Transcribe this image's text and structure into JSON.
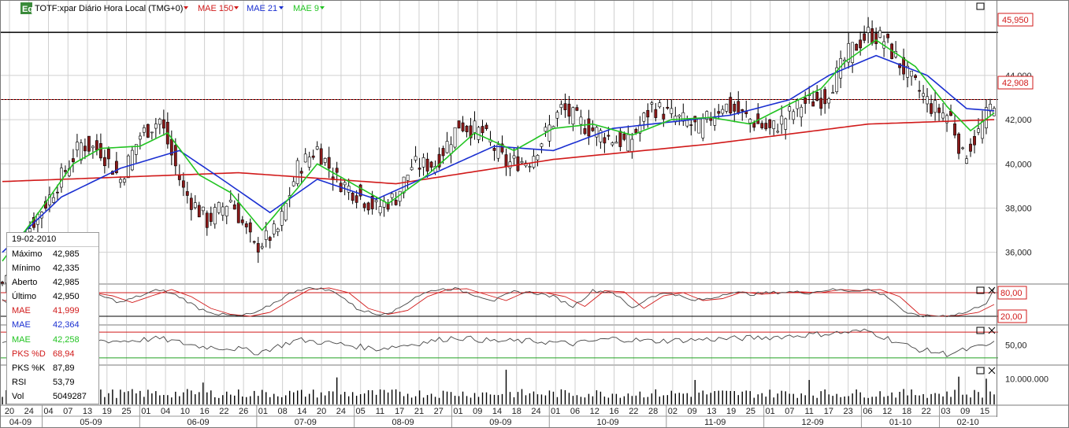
{
  "header": {
    "logo_text": "Eq",
    "symbol_label": "TOTF:xpar Diário Hora Local (TMG+0)",
    "indicators": [
      {
        "label": "MAE 150",
        "color": "#d11a1a"
      },
      {
        "label": "MAE 21",
        "color": "#1a2fd1"
      },
      {
        "label": "MAE 9",
        "color": "#22c422"
      }
    ]
  },
  "price_markers": {
    "resistance": "45,950",
    "last": "42,908"
  },
  "info_box": {
    "date": "19-02-2010",
    "rows": [
      {
        "label": "Máximo",
        "value": "42,985",
        "color": "#000000"
      },
      {
        "label": "Mínimo",
        "value": "42,335",
        "color": "#000000"
      },
      {
        "label": "Aberto",
        "value": "42,985",
        "color": "#000000"
      },
      {
        "label": "Último",
        "value": "42,950",
        "color": "#000000"
      },
      {
        "label": "MAE",
        "value": "41,999",
        "color": "#d11a1a"
      },
      {
        "label": "MAE",
        "value": "42,364",
        "color": "#1a2fd1"
      },
      {
        "label": "MAE",
        "value": "42,258",
        "color": "#22c422"
      },
      {
        "label": "PKS %D",
        "value": "68,94",
        "color": "#d11a1a"
      },
      {
        "label": "PKS %K",
        "value": "87,89",
        "color": "#000000"
      },
      {
        "label": "RSI",
        "value": "53,79",
        "color": "#000000"
      },
      {
        "label": "Vol",
        "value": "5049287",
        "color": "#000000"
      }
    ]
  },
  "colors": {
    "up_candle": "#ffffff",
    "down_candle": "#8b1a1a",
    "grid": "#d0d0d0",
    "mae150": "#d11a1a",
    "mae21": "#1a2fd1",
    "mae9": "#22c422"
  },
  "chart_data": {
    "type": "line",
    "panels": [
      {
        "name": "price",
        "kind": "candlestick",
        "y_ticks": [
          "36,000",
          "38,000",
          "40,000",
          "42,000",
          "44,000"
        ],
        "y_tick_values": [
          36,
          38,
          40,
          42,
          44
        ],
        "ylim": [
          34.6,
          46.7
        ],
        "horizontal_lines": [
          45.95,
          42.908
        ],
        "grid": true
      },
      {
        "name": "stochastic",
        "series_names": [
          "PKS %K",
          "PKS %D"
        ],
        "y_ticks": [
          "80,00",
          "20,00"
        ],
        "y_tick_values": [
          80,
          20
        ],
        "ylim": [
          0,
          100
        ]
      },
      {
        "name": "rsi",
        "y_ticks": [
          "50,00"
        ],
        "y_tick_values": [
          50
        ],
        "ylim": [
          20,
          80
        ],
        "reference_lines": [
          70,
          30
        ]
      },
      {
        "name": "volume",
        "kind": "bar",
        "y_ticks": [
          "10.000.000"
        ],
        "y_tick_values": [
          10000000
        ],
        "ylim": [
          0,
          15000000
        ]
      }
    ],
    "x_day_ticks": [
      "20",
      "24",
      "04",
      "07",
      "13",
      "19",
      "25",
      "01",
      "04",
      "10",
      "16",
      "22",
      "26",
      "01",
      "08",
      "14",
      "20",
      "24",
      "05",
      "11",
      "17",
      "21",
      "27",
      "01",
      "09",
      "14",
      "18",
      "24",
      "01",
      "06",
      "12",
      "16",
      "22",
      "28",
      "02",
      "09",
      "13",
      "19",
      "25",
      "01",
      "07",
      "11",
      "17",
      "23",
      "06",
      "12",
      "18",
      "22",
      "03",
      "09",
      "15"
    ],
    "x_month_ticks": [
      "04-09",
      "05-09",
      "06-09",
      "07-09",
      "08-09",
      "09-09",
      "10-09",
      "11-09",
      "12-09",
      "01-10",
      "02-10"
    ],
    "close_path": [
      [
        0,
        34.6
      ],
      [
        5,
        36.6
      ],
      [
        12,
        38.5
      ],
      [
        20,
        40.9
      ],
      [
        25,
        40.6
      ],
      [
        30,
        39.3
      ],
      [
        35,
        41.3
      ],
      [
        40,
        42.0
      ],
      [
        46,
        38.8
      ],
      [
        52,
        37.4
      ],
      [
        58,
        38.4
      ],
      [
        64,
        36.2
      ],
      [
        70,
        37.0
      ],
      [
        75,
        39.8
      ],
      [
        80,
        40.7
      ],
      [
        85,
        39.3
      ],
      [
        95,
        38.0
      ],
      [
        100,
        38.5
      ],
      [
        104,
        39.9
      ],
      [
        110,
        40.0
      ],
      [
        116,
        41.8
      ],
      [
        122,
        41.4
      ],
      [
        128,
        40.0
      ],
      [
        134,
        40.2
      ],
      [
        142,
        42.5
      ],
      [
        149,
        41.6
      ],
      [
        154,
        41.2
      ],
      [
        159,
        40.9
      ],
      [
        165,
        42.6
      ],
      [
        171,
        42.1
      ],
      [
        177,
        41.6
      ],
      [
        183,
        42.7
      ],
      [
        189,
        42.1
      ],
      [
        195,
        41.5
      ],
      [
        203,
        42.7
      ],
      [
        209,
        43.0
      ],
      [
        215,
        45.0
      ],
      [
        220,
        45.9
      ],
      [
        224,
        45.6
      ],
      [
        230,
        44.0
      ],
      [
        236,
        42.6
      ],
      [
        241,
        42.1
      ],
      [
        244,
        40.3
      ],
      [
        248,
        41.4
      ],
      [
        252,
        42.9
      ]
    ],
    "mae150_path": [
      [
        0,
        39.2
      ],
      [
        60,
        39.6
      ],
      [
        100,
        39.1
      ],
      [
        140,
        40.2
      ],
      [
        180,
        40.9
      ],
      [
        220,
        41.8
      ],
      [
        252,
        42.0
      ]
    ],
    "mae21_path": [
      [
        0,
        36.0
      ],
      [
        15,
        38.5
      ],
      [
        30,
        39.8
      ],
      [
        45,
        40.6
      ],
      [
        55,
        39.4
      ],
      [
        68,
        37.8
      ],
      [
        80,
        39.3
      ],
      [
        95,
        38.4
      ],
      [
        110,
        39.6
      ],
      [
        125,
        40.8
      ],
      [
        140,
        40.6
      ],
      [
        155,
        41.6
      ],
      [
        170,
        41.9
      ],
      [
        185,
        42.2
      ],
      [
        200,
        42.9
      ],
      [
        210,
        44.0
      ],
      [
        222,
        44.9
      ],
      [
        235,
        44.0
      ],
      [
        245,
        42.5
      ],
      [
        252,
        42.4
      ]
    ],
    "mae9_path": [
      [
        0,
        35.6
      ],
      [
        8,
        37.5
      ],
      [
        18,
        40.0
      ],
      [
        25,
        40.7
      ],
      [
        35,
        40.8
      ],
      [
        42,
        41.4
      ],
      [
        50,
        39.5
      ],
      [
        58,
        38.7
      ],
      [
        66,
        37.0
      ],
      [
        75,
        38.9
      ],
      [
        80,
        40.0
      ],
      [
        90,
        39.0
      ],
      [
        98,
        38.2
      ],
      [
        108,
        39.5
      ],
      [
        120,
        41.4
      ],
      [
        130,
        40.6
      ],
      [
        140,
        41.6
      ],
      [
        150,
        41.8
      ],
      [
        160,
        41.3
      ],
      [
        170,
        42.0
      ],
      [
        180,
        42.1
      ],
      [
        190,
        41.8
      ],
      [
        200,
        42.7
      ],
      [
        208,
        43.4
      ],
      [
        214,
        44.6
      ],
      [
        222,
        45.6
      ],
      [
        232,
        44.4
      ],
      [
        240,
        42.6
      ],
      [
        246,
        41.5
      ],
      [
        252,
        42.3
      ]
    ],
    "stoch_path": [
      [
        0,
        60
      ],
      [
        5,
        50
      ],
      [
        10,
        75
      ],
      [
        15,
        85
      ],
      [
        20,
        80
      ],
      [
        25,
        72
      ],
      [
        30,
        55
      ],
      [
        35,
        72
      ],
      [
        40,
        88
      ],
      [
        45,
        70
      ],
      [
        50,
        40
      ],
      [
        55,
        25
      ],
      [
        60,
        20
      ],
      [
        65,
        30
      ],
      [
        70,
        60
      ],
      [
        75,
        88
      ],
      [
        80,
        92
      ],
      [
        85,
        80
      ],
      [
        90,
        40
      ],
      [
        95,
        25
      ],
      [
        100,
        35
      ],
      [
        105,
        70
      ],
      [
        110,
        88
      ],
      [
        115,
        90
      ],
      [
        120,
        75
      ],
      [
        125,
        60
      ],
      [
        130,
        82
      ],
      [
        135,
        80
      ],
      [
        140,
        70
      ],
      [
        145,
        45
      ],
      [
        150,
        85
      ],
      [
        155,
        82
      ],
      [
        160,
        40
      ],
      [
        165,
        72
      ],
      [
        170,
        80
      ],
      [
        175,
        60
      ],
      [
        180,
        65
      ],
      [
        185,
        82
      ],
      [
        190,
        76
      ],
      [
        195,
        80
      ],
      [
        200,
        82
      ],
      [
        205,
        80
      ],
      [
        210,
        88
      ],
      [
        215,
        85
      ],
      [
        220,
        88
      ],
      [
        225,
        70
      ],
      [
        230,
        25
      ],
      [
        235,
        20
      ],
      [
        240,
        22
      ],
      [
        245,
        30
      ],
      [
        250,
        55
      ],
      [
        252,
        88
      ]
    ],
    "rsi_path": [
      [
        0,
        52
      ],
      [
        10,
        60
      ],
      [
        20,
        58
      ],
      [
        30,
        56
      ],
      [
        40,
        60
      ],
      [
        50,
        48
      ],
      [
        60,
        44
      ],
      [
        65,
        38
      ],
      [
        75,
        58
      ],
      [
        85,
        52
      ],
      [
        95,
        44
      ],
      [
        105,
        52
      ],
      [
        115,
        62
      ],
      [
        125,
        56
      ],
      [
        135,
        56
      ],
      [
        145,
        52
      ],
      [
        155,
        60
      ],
      [
        165,
        56
      ],
      [
        175,
        58
      ],
      [
        185,
        60
      ],
      [
        195,
        62
      ],
      [
        205,
        66
      ],
      [
        215,
        70
      ],
      [
        220,
        72
      ],
      [
        225,
        60
      ],
      [
        232,
        44
      ],
      [
        240,
        36
      ],
      [
        246,
        44
      ],
      [
        252,
        52
      ]
    ],
    "volume_spikes": [
      [
        51,
        8.5
      ],
      [
        85,
        10.5
      ],
      [
        128,
        13.5
      ],
      [
        176,
        9.5
      ],
      [
        205,
        9.5
      ],
      [
        243,
        10.8
      ],
      [
        250,
        10.0
      ]
    ],
    "info": {
      "date": "19-02-2010",
      "high": 42.985,
      "low": 42.335,
      "open": 42.985,
      "last": 42.95,
      "mae150": 41.999,
      "mae21": 42.364,
      "mae9": 42.258,
      "pks_d": 68.94,
      "pks_k": 87.89,
      "rsi": 53.79,
      "vol": 5049287
    }
  }
}
